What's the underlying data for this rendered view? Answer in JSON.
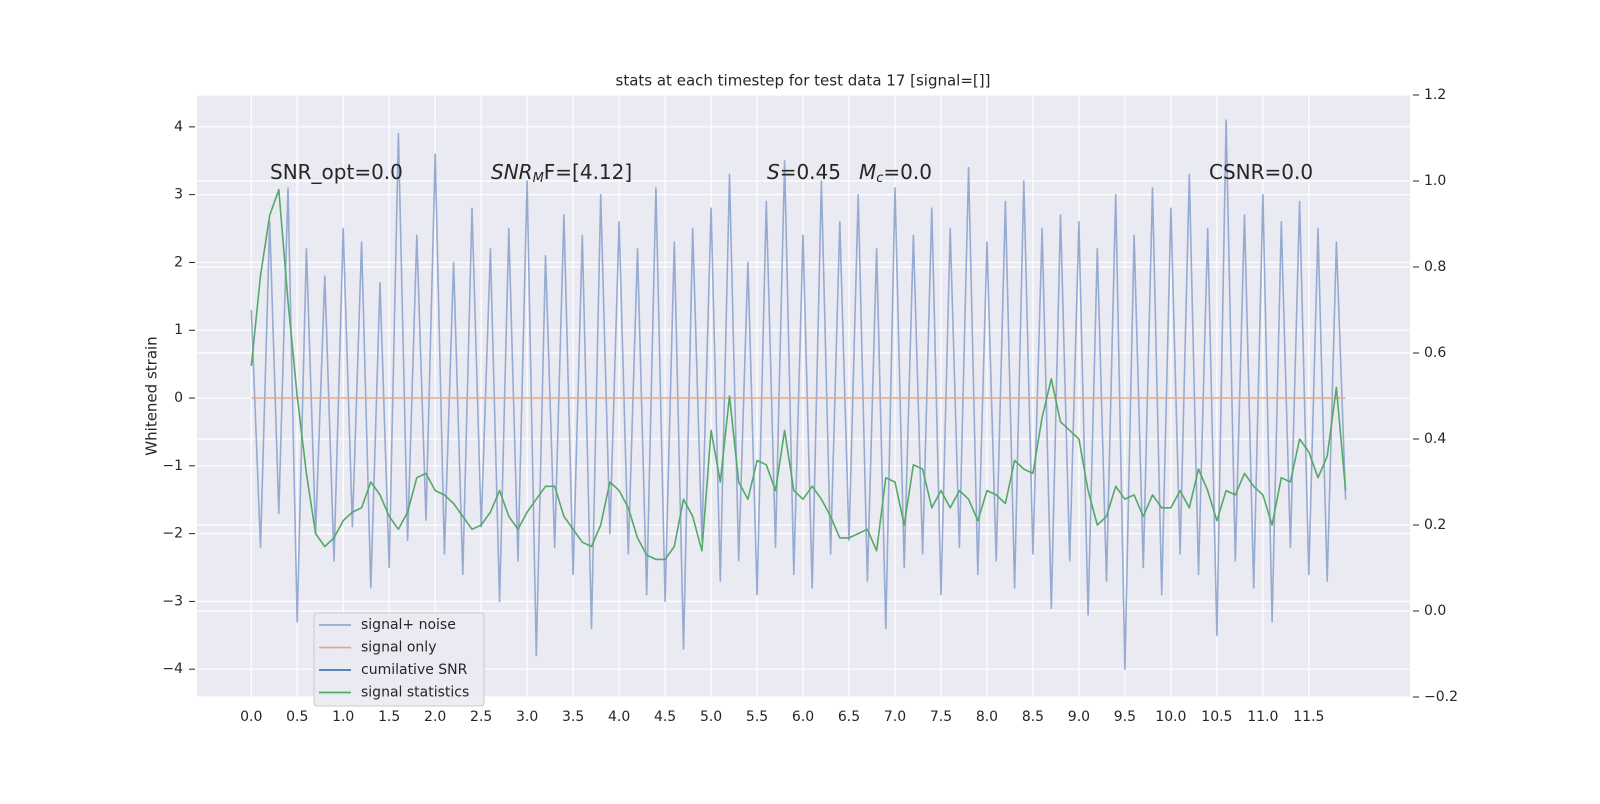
{
  "chart_data": {
    "type": "line",
    "title": "stats at each timestep for test data 17 [signal=[]]",
    "ylabel": "Whitened strain",
    "annotations": [
      {
        "main": "SNR_opt=0.0"
      },
      {
        "main": "SNR",
        "sub": "M",
        "after": "F=[4.12]",
        "italic": true
      },
      {
        "main": "S",
        "after": "=0.45",
        "italic": true
      },
      {
        "main": "M",
        "sub": "c",
        "after": "=0.0",
        "italic": true
      },
      {
        "main": "CSNR=0.0"
      }
    ],
    "x": [
      0,
      0.1,
      0.2,
      0.3,
      0.4,
      0.5,
      0.6,
      0.7,
      0.8,
      0.9,
      1,
      1.1,
      1.2,
      1.3,
      1.4,
      1.5,
      1.6,
      1.7,
      1.8,
      1.9,
      2,
      2.1,
      2.2,
      2.3,
      2.4,
      2.5,
      2.6,
      2.7,
      2.8,
      2.9,
      3,
      3.1,
      3.2,
      3.3,
      3.4,
      3.5,
      3.6,
      3.7,
      3.8,
      3.9,
      4,
      4.1,
      4.2,
      4.3,
      4.4,
      4.5,
      4.6,
      4.7,
      4.8,
      4.9,
      5,
      5.1,
      5.2,
      5.3,
      5.4,
      5.5,
      5.6,
      5.7,
      5.8,
      5.9,
      6,
      6.1,
      6.2,
      6.3,
      6.4,
      6.5,
      6.6,
      6.7,
      6.8,
      6.9,
      7,
      7.1,
      7.2,
      7.3,
      7.4,
      7.5,
      7.6,
      7.7,
      7.8,
      7.9,
      8,
      8.1,
      8.2,
      8.3,
      8.4,
      8.5,
      8.6,
      8.7,
      8.8,
      8.9,
      9,
      9.1,
      9.2,
      9.3,
      9.4,
      9.5,
      9.6,
      9.7,
      9.8,
      9.9,
      10,
      10.1,
      10.2,
      10.3,
      10.4,
      10.5,
      10.6,
      10.7,
      10.8,
      10.9,
      11,
      11.1,
      11.2,
      11.3,
      11.4,
      11.5,
      11.6,
      11.7,
      11.8,
      11.9
    ],
    "series": [
      {
        "name": "signal+ noise",
        "color": "#97aad1",
        "values": [
          1.3,
          -2.2,
          2.6,
          -1.7,
          3.1,
          -3.3,
          2.2,
          -2.0,
          1.8,
          -2.4,
          2.5,
          -1.9,
          2.3,
          -2.8,
          1.7,
          -2.5,
          3.9,
          -2.1,
          2.4,
          -1.8,
          3.6,
          -2.3,
          2.0,
          -2.6,
          2.8,
          -1.9,
          2.2,
          -3.0,
          2.5,
          -2.4,
          3.2,
          -3.8,
          2.1,
          -2.2,
          2.7,
          -2.6,
          2.4,
          -3.4,
          3.0,
          -2.0,
          2.6,
          -2.3,
          2.2,
          -2.9,
          3.1,
          -3.0,
          2.3,
          -3.7,
          2.5,
          -2.1,
          2.8,
          -2.7,
          3.3,
          -2.4,
          2.0,
          -2.9,
          2.9,
          -2.2,
          3.5,
          -2.6,
          2.4,
          -2.8,
          3.2,
          -2.3,
          2.6,
          -2.1,
          3.0,
          -2.7,
          2.2,
          -3.4,
          3.1,
          -2.5,
          2.4,
          -2.3,
          2.8,
          -2.9,
          2.5,
          -2.2,
          3.4,
          -2.6,
          2.3,
          -2.4,
          2.9,
          -2.8,
          3.2,
          -2.3,
          2.5,
          -3.1,
          2.7,
          -2.4,
          2.6,
          -3.2,
          2.2,
          -2.7,
          3.0,
          -4.0,
          2.4,
          -2.5,
          3.1,
          -2.9,
          2.8,
          -2.3,
          3.3,
          -2.6,
          2.5,
          -3.5,
          4.1,
          -2.4,
          2.7,
          -2.8,
          3.0,
          -3.3,
          2.6,
          -2.2,
          2.9,
          -2.6,
          2.5,
          -2.7,
          2.3,
          -1.5
        ]
      },
      {
        "name": "signal only",
        "color": "#e3a88c",
        "values": [
          0,
          0,
          0,
          0,
          0,
          0,
          0,
          0,
          0,
          0,
          0,
          0,
          0,
          0,
          0,
          0,
          0,
          0,
          0,
          0,
          0,
          0,
          0,
          0,
          0,
          0,
          0,
          0,
          0,
          0,
          0,
          0,
          0,
          0,
          0,
          0,
          0,
          0,
          0,
          0,
          0,
          0,
          0,
          0,
          0,
          0,
          0,
          0,
          0,
          0,
          0,
          0,
          0,
          0,
          0,
          0,
          0,
          0,
          0,
          0,
          0,
          0,
          0,
          0,
          0,
          0,
          0,
          0,
          0,
          0,
          0,
          0,
          0,
          0,
          0,
          0,
          0,
          0,
          0,
          0,
          0,
          0,
          0,
          0,
          0,
          0,
          0,
          0,
          0,
          0,
          0,
          0,
          0,
          0,
          0,
          0,
          0,
          0,
          0,
          0,
          0,
          0,
          0,
          0,
          0,
          0,
          0,
          0,
          0,
          0,
          0,
          0,
          0,
          0,
          0,
          0,
          0,
          0,
          0,
          0
        ]
      },
      {
        "name": "cumilative SNR",
        "color": "#4c72b0",
        "values": [
          null,
          null,
          null,
          null,
          null,
          null,
          null,
          null,
          null,
          null,
          null,
          null,
          null,
          null,
          null,
          null,
          null,
          null,
          null,
          null,
          null,
          null,
          null,
          null,
          null,
          null,
          null,
          null,
          null,
          null,
          null,
          null,
          null,
          null,
          null,
          null,
          null,
          null,
          null,
          null,
          null,
          null,
          null,
          null,
          null,
          null,
          null,
          null,
          null,
          null,
          null,
          null,
          null,
          null,
          null,
          null,
          null,
          null,
          null,
          null,
          null,
          null,
          null,
          null,
          null,
          null,
          null,
          null,
          null,
          null,
          null,
          null,
          null,
          null,
          null,
          null,
          null,
          null,
          null,
          null,
          null,
          null,
          null,
          null,
          null,
          null,
          null,
          null,
          null,
          null,
          null,
          null,
          null,
          null,
          null,
          null,
          null,
          null,
          null,
          null,
          null,
          null,
          null,
          null,
          null,
          null,
          null,
          null,
          null,
          null,
          null,
          null,
          null,
          null,
          null,
          null,
          null,
          null,
          null,
          null
        ]
      },
      {
        "name": "signal statistics",
        "color": "#55a868",
        "axis": "y2",
        "values": [
          0.57,
          0.78,
          0.92,
          0.98,
          0.72,
          0.5,
          0.32,
          0.18,
          0.15,
          0.17,
          0.21,
          0.23,
          0.24,
          0.3,
          0.27,
          0.22,
          0.19,
          0.23,
          0.31,
          0.32,
          0.28,
          0.27,
          0.25,
          0.22,
          0.19,
          0.2,
          0.23,
          0.28,
          0.22,
          0.19,
          0.23,
          0.26,
          0.29,
          0.29,
          0.22,
          0.19,
          0.16,
          0.15,
          0.2,
          0.3,
          0.28,
          0.24,
          0.17,
          0.13,
          0.12,
          0.12,
          0.15,
          0.26,
          0.22,
          0.14,
          0.42,
          0.3,
          0.5,
          0.3,
          0.26,
          0.35,
          0.34,
          0.28,
          0.42,
          0.28,
          0.26,
          0.29,
          0.26,
          0.22,
          0.17,
          0.17,
          0.18,
          0.19,
          0.14,
          0.31,
          0.3,
          0.2,
          0.34,
          0.33,
          0.24,
          0.28,
          0.24,
          0.28,
          0.26,
          0.21,
          0.28,
          0.27,
          0.25,
          0.35,
          0.33,
          0.32,
          0.45,
          0.54,
          0.44,
          0.42,
          0.4,
          0.28,
          0.2,
          0.22,
          0.29,
          0.26,
          0.27,
          0.22,
          0.27,
          0.24,
          0.24,
          0.28,
          0.24,
          0.33,
          0.28,
          0.21,
          0.28,
          0.27,
          0.32,
          0.29,
          0.27,
          0.2,
          0.31,
          0.3,
          0.4,
          0.37,
          0.31,
          0.36,
          0.52,
          0.28
        ]
      }
    ],
    "xlim": [
      -0.59,
      12.6
    ],
    "xticks": [
      {
        "value": 0,
        "label": "0.0"
      },
      0.5,
      {
        "value": 1,
        "label": "1.0"
      },
      1.5,
      {
        "value": 2,
        "label": "2.0"
      },
      2.5,
      {
        "value": 3,
        "label": "3.0"
      },
      3.5,
      {
        "value": 4,
        "label": "4.0"
      },
      4.5,
      {
        "value": 5,
        "label": "5.0"
      },
      5.5,
      {
        "value": 6,
        "label": "6.0"
      },
      6.5,
      {
        "value": 7,
        "label": "7.0"
      },
      7.5,
      {
        "value": 8,
        "label": "8.0"
      },
      8.5,
      {
        "value": 9,
        "label": "9.0"
      },
      9.5,
      {
        "value": 10,
        "label": "10.0"
      },
      10.5,
      {
        "value": 11,
        "label": "11.0"
      },
      11.5
    ],
    "ylim": [
      -4.41,
      4.47
    ],
    "yticks": [
      {
        "value": -4,
        "label": "−4"
      },
      {
        "value": -3,
        "label": "−3"
      },
      {
        "value": -2,
        "label": "−2"
      },
      {
        "value": -1,
        "label": "−1"
      },
      0,
      1,
      2,
      3,
      4
    ],
    "y2lim": [
      -0.2,
      1.2
    ],
    "y2ticks": [
      {
        "value": -0.2,
        "label": "−0.2"
      },
      {
        "value": 0,
        "label": "0.0"
      },
      0.2,
      0.4,
      0.6,
      0.8,
      {
        "value": 1,
        "label": "1.0"
      },
      1.2
    ],
    "grid": true,
    "legend": "lower left"
  }
}
